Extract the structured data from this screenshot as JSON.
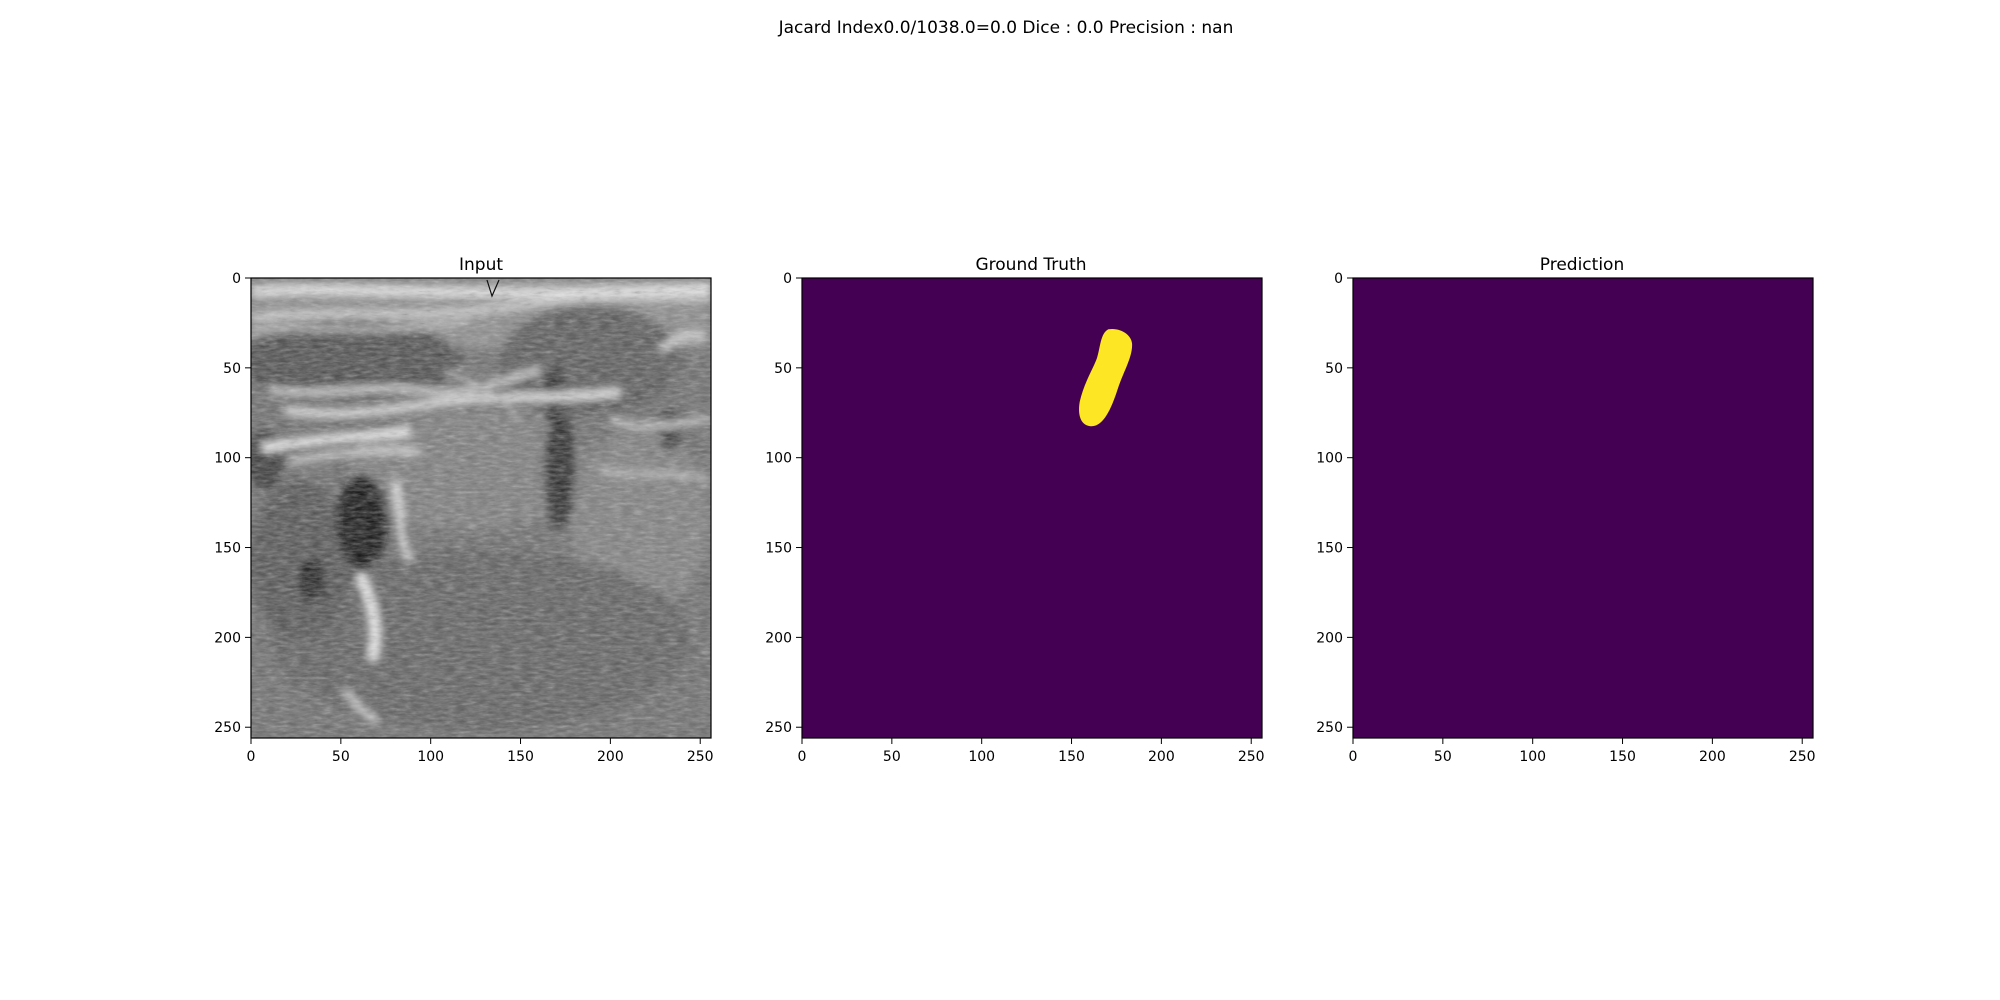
{
  "figure": {
    "suptitle": "Jacard Index0.0/1038.0=0.0 Dice : 0.0 Precision : nan"
  },
  "colors": {
    "viridis_low": "#440154",
    "viridis_high": "#fde725",
    "axis": "#000000"
  },
  "chart_data": [
    {
      "type": "image",
      "title": "Input",
      "colormap": "gray",
      "content": "grayscale ultrasound scan",
      "xlim": [
        0,
        256
      ],
      "ylim": [
        256,
        0
      ],
      "xticks": [
        0,
        50,
        100,
        150,
        200,
        250
      ],
      "yticks": [
        0,
        50,
        100,
        150,
        200,
        250
      ]
    },
    {
      "type": "image",
      "title": "Ground Truth",
      "colormap": "viridis",
      "background_value": 0,
      "mask_value": 1,
      "mask_region": {
        "shape": "elongated blob",
        "x_range": [
          154,
          184
        ],
        "y_range": [
          28,
          83
        ]
      },
      "xlim": [
        0,
        256
      ],
      "ylim": [
        256,
        0
      ],
      "xticks": [
        0,
        50,
        100,
        150,
        200,
        250
      ],
      "yticks": [
        0,
        50,
        100,
        150,
        200,
        250
      ]
    },
    {
      "type": "image",
      "title": "Prediction",
      "colormap": "viridis",
      "background_value": 0,
      "mask_region": null,
      "xlim": [
        0,
        256
      ],
      "ylim": [
        256,
        0
      ],
      "xticks": [
        0,
        50,
        100,
        150,
        200,
        250
      ],
      "yticks": [
        0,
        50,
        100,
        150,
        200,
        250
      ]
    }
  ]
}
